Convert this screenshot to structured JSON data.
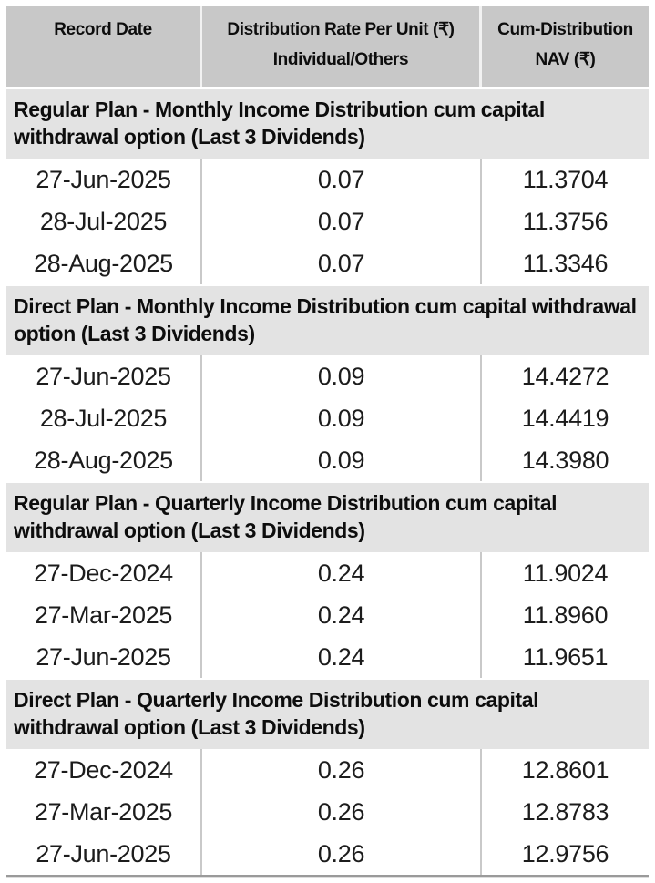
{
  "header": {
    "record_date": "Record Date",
    "rate_line1": "Distribution Rate Per Unit  (₹)",
    "rate_line2": "Individual/Others",
    "nav_line1": "Cum-Distribution",
    "nav_line2": "NAV (₹)"
  },
  "sections": [
    {
      "title": "Regular Plan - Monthly Income Distribution cum capital withdrawal option (Last 3 Dividends)",
      "rows": [
        {
          "record_date": "27-Jun-2025",
          "rate": "0.07",
          "nav": "11.3704"
        },
        {
          "record_date": "28-Jul-2025",
          "rate": "0.07",
          "nav": "11.3756"
        },
        {
          "record_date": "28-Aug-2025",
          "rate": "0.07",
          "nav": "11.3346"
        }
      ]
    },
    {
      "title": "Direct Plan - Monthly Income Distribution cum capital withdrawal option (Last 3 Dividends)",
      "rows": [
        {
          "record_date": "27-Jun-2025",
          "rate": "0.09",
          "nav": "14.4272"
        },
        {
          "record_date": "28-Jul-2025",
          "rate": "0.09",
          "nav": "14.4419"
        },
        {
          "record_date": "28-Aug-2025",
          "rate": "0.09",
          "nav": "14.3980"
        }
      ]
    },
    {
      "title": "Regular Plan - Quarterly Income Distribution cum capital withdrawal option (Last 3 Dividends)",
      "rows": [
        {
          "record_date": "27-Dec-2024",
          "rate": "0.24",
          "nav": "11.9024"
        },
        {
          "record_date": "27-Mar-2025",
          "rate": "0.24",
          "nav": "11.8960"
        },
        {
          "record_date": "27-Jun-2025",
          "rate": "0.24",
          "nav": "11.9651"
        }
      ]
    },
    {
      "title": "Direct Plan - Quarterly Income Distribution cum capital withdrawal option (Last 3 Dividends)",
      "rows": [
        {
          "record_date": "27-Dec-2024",
          "rate": "0.26",
          "nav": "12.8601"
        },
        {
          "record_date": "27-Mar-2025",
          "rate": "0.26",
          "nav": "12.8783"
        },
        {
          "record_date": "27-Jun-2025",
          "rate": "0.26",
          "nav": "12.9756"
        }
      ]
    }
  ],
  "colors": {
    "header_bg": "#c8c8c8",
    "section_bg": "#e3e3e3",
    "column_divider": "#c9c9c9",
    "bottom_rule": "#9a9a9a",
    "text": "#0d0d0d"
  }
}
